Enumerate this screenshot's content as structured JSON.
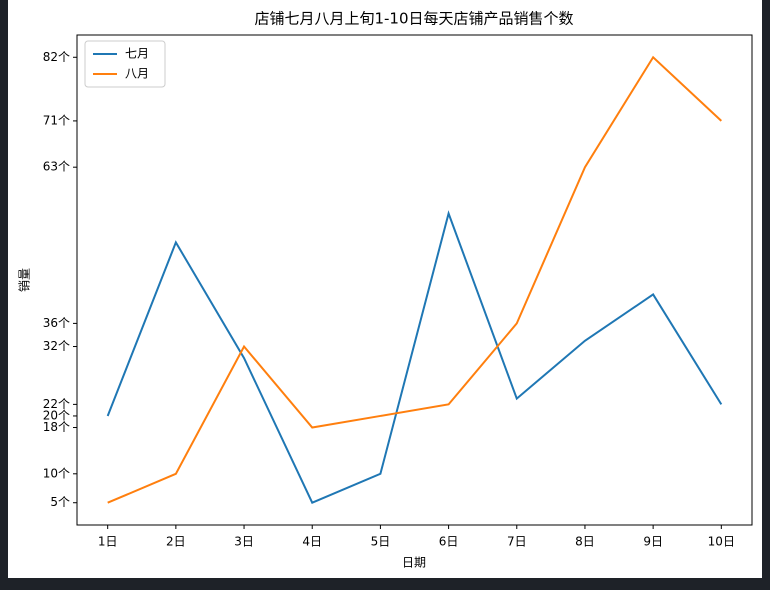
{
  "chart_data": {
    "type": "line",
    "title": "店铺七月八月上旬1-10日每天店铺产品销售个数",
    "x_label": "日期",
    "y_label": "销量",
    "categories": [
      "1日",
      "2日",
      "3日",
      "4日",
      "5日",
      "6日",
      "7日",
      "8日",
      "9日",
      "10日"
    ],
    "series": [
      {
        "name": "七月",
        "color": "#1f77b4",
        "values": [
          20,
          50,
          30,
          5,
          10,
          55,
          23,
          33,
          41,
          22
        ]
      },
      {
        "name": "八月",
        "color": "#ff7f0e",
        "values": [
          5,
          10,
          32,
          18,
          20,
          22,
          36,
          63,
          82,
          71
        ]
      }
    ],
    "ylim": [
      1.15,
      85.85
    ],
    "yticks": [
      {
        "value": 5,
        "label": "5个"
      },
      {
        "value": 10,
        "label": "10个"
      },
      {
        "value": 18,
        "label": "18个"
      },
      {
        "value": 20,
        "label": "20个"
      },
      {
        "value": 22,
        "label": "22个"
      },
      {
        "value": 32,
        "label": "32个"
      },
      {
        "value": 36,
        "label": "36个"
      },
      {
        "value": 63,
        "label": "63个"
      },
      {
        "value": 71,
        "label": "71个"
      },
      {
        "value": 82,
        "label": "82个"
      }
    ],
    "legend": "upper left"
  }
}
